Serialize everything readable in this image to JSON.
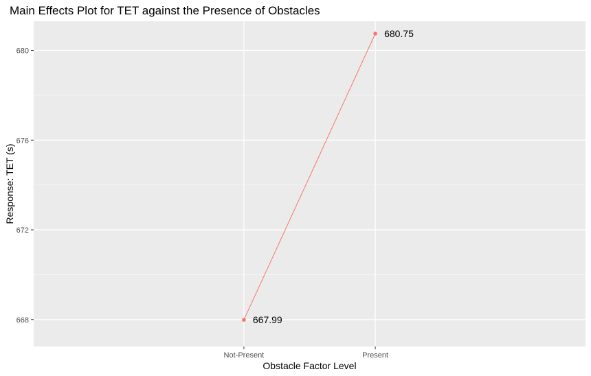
{
  "colors": {
    "panel_background": "#ebebeb",
    "grid_major": "#ffffff",
    "series": "#f8766d",
    "tick_text": "#4d4d4d",
    "text": "#000000"
  },
  "chart_data": {
    "type": "line",
    "title": "Main Effects Plot for TET against the Presence of Obstacles",
    "xlabel": "Obstacle Factor Level",
    "ylabel": "Response: TET (s)",
    "categories": [
      "Not-Present",
      "Present"
    ],
    "series": [
      {
        "values": [
          667.99,
          680.75
        ],
        "data_labels": [
          "667.99",
          "680.75"
        ]
      }
    ],
    "ylim": [
      666.8,
      681.3
    ],
    "yticks": [
      668,
      672,
      676,
      680
    ],
    "ytick_labels": [
      "668",
      "672",
      "676",
      "680"
    ],
    "grid": true,
    "legend": "none"
  }
}
